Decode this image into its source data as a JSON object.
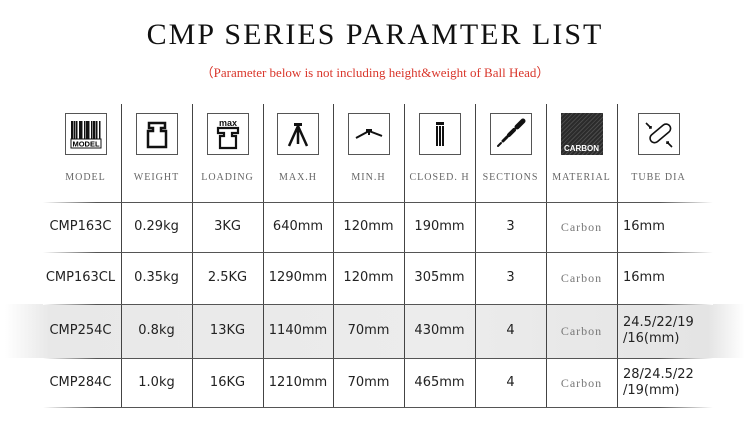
{
  "title": "CMP SERIES PARAMTER LIST",
  "subtitle": "（Parameter below is not including height&weight of Ball Head）",
  "headers": [
    {
      "label": "MODEL",
      "icon": "barcode-model-icon",
      "icon_text": "MODEL"
    },
    {
      "label": "WEIGHT",
      "icon": "weight-icon"
    },
    {
      "label": "LOADING",
      "icon": "max-load-weight-icon",
      "icon_text": "max"
    },
    {
      "label": "MAX.H",
      "icon": "tripod-extended-icon"
    },
    {
      "label": "MIN.H",
      "icon": "tripod-low-icon"
    },
    {
      "label": "CLOSED. H",
      "icon": "tripod-closed-icon"
    },
    {
      "label": "SECTIONS",
      "icon": "leg-sections-icon"
    },
    {
      "label": "MATERIAL",
      "icon": "carbon-texture-icon",
      "icon_text": "CARBON"
    },
    {
      "label": "TUBE DIA",
      "icon": "tube-diameter-icon"
    }
  ],
  "rows": [
    [
      "CMP163C",
      "0.29kg",
      "3KG",
      "640mm",
      "120mm",
      "190mm",
      "3",
      "Carbon",
      "16mm"
    ],
    [
      "CMP163CL",
      "0.35kg",
      "2.5KG",
      "1290mm",
      "120mm",
      "305mm",
      "3",
      "Carbon",
      "16mm"
    ],
    [
      "CMP254C",
      "0.8kg",
      "13KG",
      "1140mm",
      "70mm",
      "430mm",
      "4",
      "Carbon",
      "24.5/22/19 /16(mm)"
    ],
    [
      "CMP284C",
      "1.0kg",
      "16KG",
      "1210mm",
      "70mm",
      "465mm",
      "4",
      "Carbon",
      "28/24.5/22 /19(mm)"
    ]
  ],
  "colors": {
    "subtitle": "#d9362b",
    "highlight_row": "#ececec"
  }
}
